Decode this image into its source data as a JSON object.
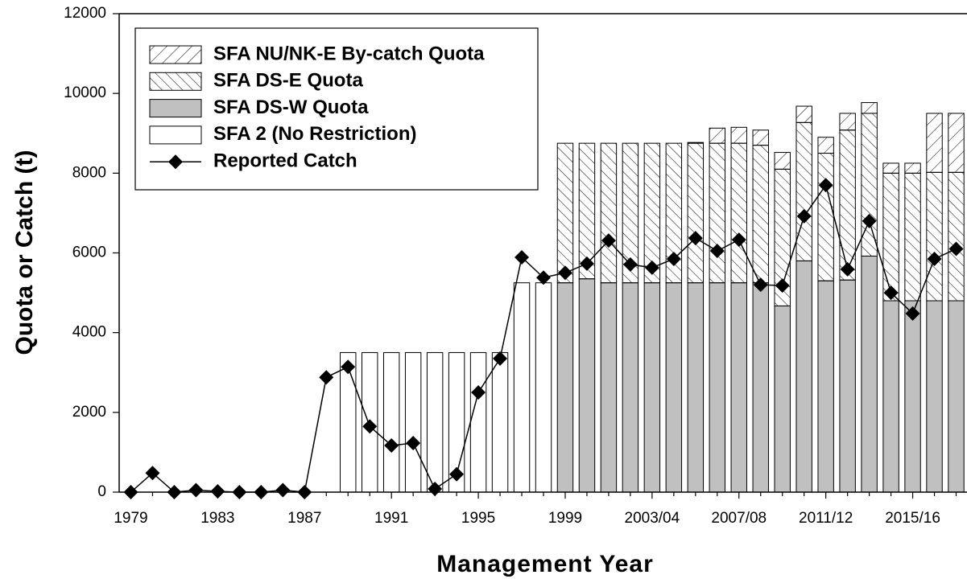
{
  "chart_data": {
    "type": "bar",
    "stacked": true,
    "y_title": "Quota or Catch (t)",
    "x_title": "Management Year",
    "categories": [
      "1979",
      null,
      null,
      null,
      "1983",
      null,
      null,
      null,
      "1987",
      null,
      null,
      null,
      "1991",
      null,
      null,
      null,
      "1995",
      null,
      null,
      null,
      "1999",
      null,
      null,
      null,
      "2003/04",
      null,
      null,
      null,
      "2007/08",
      null,
      null,
      null,
      "2011/12",
      null,
      null,
      null,
      "2015/16",
      null,
      null
    ],
    "ylim": [
      0,
      12000
    ],
    "yticks": [
      0,
      2000,
      4000,
      6000,
      8000,
      10000,
      12000
    ],
    "series": [
      {
        "name": "SFA NU/NK-E By-catch Quota",
        "type": "bar",
        "color": "#ffffff",
        "hatch": "forward",
        "values": [
          null,
          null,
          null,
          null,
          null,
          null,
          null,
          null,
          null,
          null,
          null,
          null,
          null,
          null,
          null,
          null,
          null,
          null,
          null,
          null,
          null,
          null,
          null,
          null,
          null,
          null,
          20,
          380,
          400,
          380,
          420,
          410,
          400,
          420,
          270,
          250,
          250,
          1480,
          1480
        ]
      },
      {
        "name": "SFA DS-E Quota",
        "type": "bar",
        "color": "#ffffff",
        "hatch": "backward",
        "values": [
          null,
          null,
          null,
          null,
          null,
          null,
          null,
          null,
          null,
          null,
          null,
          null,
          null,
          null,
          null,
          null,
          null,
          null,
          null,
          null,
          3500,
          3400,
          3500,
          3500,
          3500,
          3500,
          3500,
          3500,
          3500,
          3450,
          3430,
          3470,
          3200,
          3760,
          3580,
          3200,
          3200,
          3220,
          3220
        ]
      },
      {
        "name": "SFA DS-W Quota",
        "type": "bar",
        "color": "#c0c0c0",
        "values": [
          null,
          null,
          null,
          null,
          null,
          null,
          null,
          null,
          null,
          null,
          null,
          null,
          null,
          null,
          null,
          null,
          null,
          null,
          null,
          null,
          5250,
          5350,
          5250,
          5250,
          5250,
          5250,
          5250,
          5250,
          5250,
          5250,
          4670,
          5800,
          5300,
          5320,
          5920,
          4800,
          4800,
          4800,
          4800
        ]
      },
      {
        "name": "SFA 2 (No Restriction)",
        "type": "bar",
        "color": "#ffffff",
        "values": [
          null,
          null,
          null,
          null,
          null,
          null,
          null,
          null,
          null,
          null,
          3500,
          3500,
          3500,
          3500,
          3500,
          3500,
          3500,
          3500,
          5250,
          5250,
          null,
          null,
          null,
          null,
          null,
          null,
          null,
          null,
          null,
          null,
          null,
          null,
          null,
          null,
          null,
          null,
          null,
          null,
          null
        ]
      },
      {
        "name": "Reported Catch",
        "type": "line",
        "color": "#000000",
        "marker": "diamond",
        "values": [
          0,
          480,
          0,
          50,
          20,
          0,
          0,
          50,
          0,
          2880,
          3140,
          1650,
          1170,
          1230,
          80,
          450,
          2500,
          3350,
          5890,
          5380,
          5500,
          5730,
          6310,
          5710,
          5630,
          5850,
          6370,
          6050,
          6330,
          5200,
          5180,
          6920,
          7700,
          5590,
          6800,
          5000,
          4480,
          5850,
          6100
        ]
      }
    ]
  }
}
